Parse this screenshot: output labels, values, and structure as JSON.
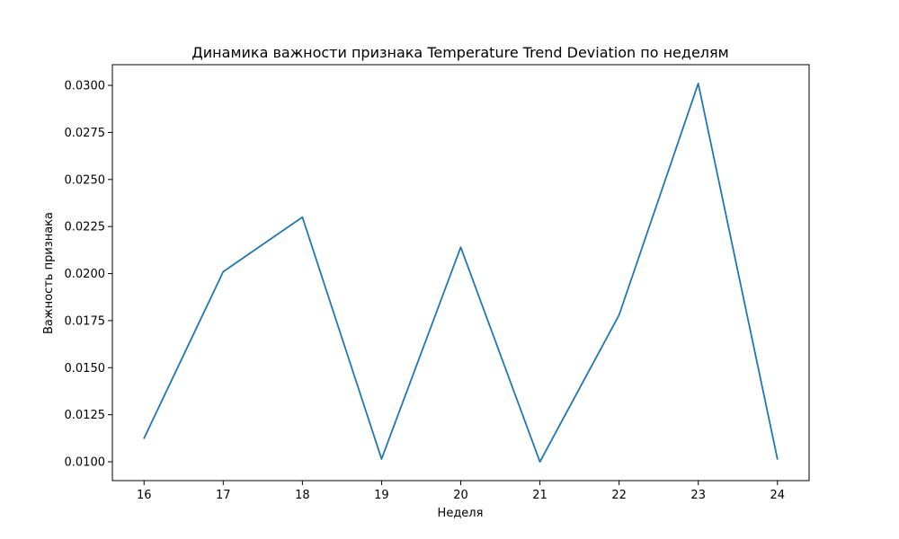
{
  "chart_data": {
    "type": "line",
    "title": "Динамика важности признака Temperature Trend Deviation по неделям",
    "xlabel": "Неделя",
    "ylabel": "Важность признака",
    "x": [
      16,
      17,
      18,
      19,
      20,
      21,
      22,
      23,
      24
    ],
    "series": [
      {
        "values": [
          0.01125,
          0.0201,
          0.023,
          0.01015,
          0.0214,
          0.01,
          0.0178,
          0.0301,
          0.01015
        ],
        "color": "#1f77b4"
      }
    ],
    "xlim": [
      15.6,
      24.4
    ],
    "ylim": [
      0.009,
      0.0311
    ],
    "xticks": [
      "16",
      "17",
      "18",
      "19",
      "20",
      "21",
      "22",
      "23",
      "24"
    ],
    "yticks": [
      "0.0100",
      "0.0125",
      "0.0150",
      "0.0175",
      "0.0200",
      "0.0225",
      "0.0250",
      "0.0275",
      "0.0300"
    ],
    "grid": false,
    "legend": "none"
  }
}
